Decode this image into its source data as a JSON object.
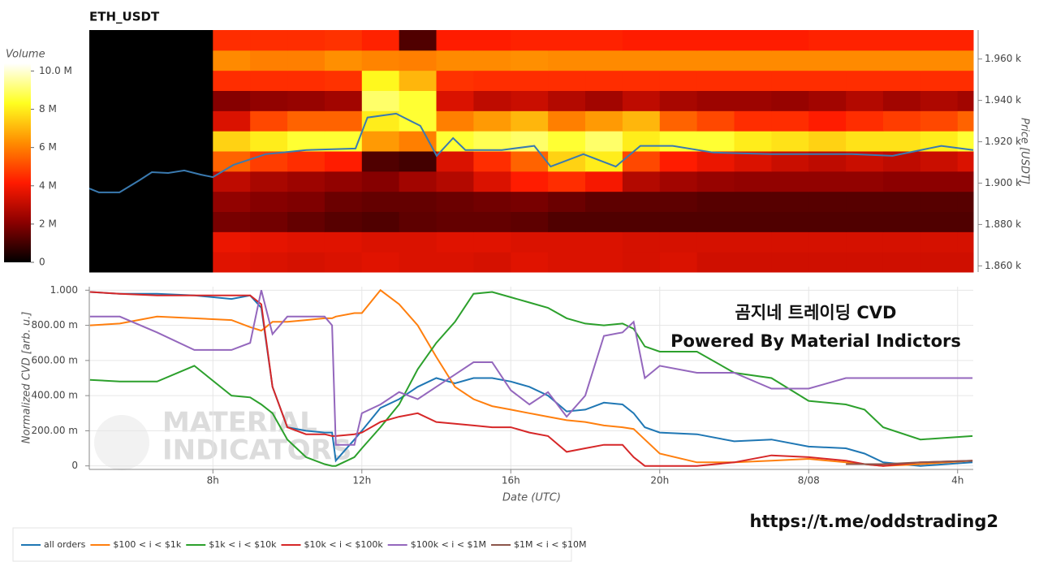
{
  "chart_data": [
    {
      "type": "heatmap",
      "title": "ETH_USDT",
      "y_label": "Price [USDT]",
      "colorbar_title": "Volume",
      "colorscale": [
        "#000000",
        "#8b0000",
        "#ff1a00",
        "#ff8c00",
        "#ffff20",
        "#ffffff"
      ],
      "zlim": [
        0,
        10.4
      ],
      "zticks": [
        0,
        {
          "value": 2,
          "label": "2 M"
        },
        {
          "value": 4,
          "label": "4 M"
        },
        {
          "value": 6,
          "label": "6 M"
        },
        {
          "value": 8,
          "label": "8 M"
        },
        {
          "value": 10,
          "label": "10.0 M"
        }
      ],
      "xlim": [
        4.68,
        28.42
      ],
      "ylim": [
        1857,
        1974
      ],
      "yticks": [
        {
          "value": 1860,
          "label": "1.860 k"
        },
        {
          "value": 1880,
          "label": "1.880 k"
        },
        {
          "value": 1900,
          "label": "1.900 k"
        },
        {
          "value": 1920,
          "label": "1.920 k"
        },
        {
          "value": 1940,
          "label": "1.940 k"
        },
        {
          "value": 1960,
          "label": "1.960 k"
        }
      ],
      "x_bins": [
        4.68,
        8,
        9,
        10,
        11,
        12,
        13,
        14,
        15,
        16,
        17,
        18,
        19,
        20,
        21,
        22,
        23,
        24,
        25,
        26,
        27,
        28,
        28.42
      ],
      "y_bins": [
        1857,
        1866.75,
        1876.5,
        1886.25,
        1896,
        1905.75,
        1915.5,
        1925.25,
        1935,
        1944.75,
        1954.5,
        1964.25,
        1974
      ],
      "z": [
        [
          0,
          3.6,
          3.5,
          3.4,
          3.5,
          3.6,
          3.5,
          3.5,
          3.4,
          3.6,
          3.5,
          3.5,
          3.4,
          3.5,
          3.3,
          3.3,
          3.3,
          3.3,
          3.3,
          3.3,
          3.3,
          3.3
        ],
        [
          0,
          3.8,
          3.7,
          3.6,
          3.6,
          3.5,
          3.5,
          3.6,
          3.6,
          3.5,
          3.5,
          3.5,
          3.4,
          3.4,
          3.4,
          3.4,
          3.4,
          3.4,
          3.4,
          3.4,
          3.4,
          3.4
        ],
        [
          0,
          1.8,
          1.7,
          1.5,
          1.3,
          1.2,
          1.4,
          1.5,
          1.5,
          1.4,
          1.2,
          1.2,
          1.2,
          1.2,
          1.2,
          1.2,
          1.2,
          1.2,
          1.2,
          1.2,
          1.2,
          1.2
        ],
        [
          0,
          2.2,
          2.0,
          1.9,
          1.6,
          1.5,
          1.5,
          1.6,
          1.7,
          1.8,
          1.6,
          1.4,
          1.4,
          1.4,
          1.3,
          1.3,
          1.3,
          1.3,
          1.3,
          1.3,
          1.3,
          1.3
        ],
        [
          0,
          3.0,
          2.6,
          2.4,
          2.2,
          2.0,
          2.5,
          2.8,
          3.5,
          4.2,
          4.5,
          4.0,
          2.8,
          2.5,
          2.3,
          2.2,
          2.2,
          2.2,
          2.2,
          2.1,
          2.1,
          2.1
        ],
        [
          0,
          5.5,
          4.8,
          4.5,
          4.2,
          1.2,
          1.0,
          3.5,
          4.5,
          5.5,
          7.5,
          8.0,
          5.0,
          4.2,
          3.8,
          3.5,
          3.2,
          3.0,
          3.2,
          3.0,
          3.2,
          3.5
        ],
        [
          0,
          7.5,
          8.0,
          8.5,
          8.5,
          6.5,
          6.0,
          8.5,
          8.8,
          9.0,
          8.5,
          9.0,
          8.0,
          8.5,
          8.5,
          8.0,
          7.8,
          7.5,
          7.8,
          7.8,
          8.0,
          8.5
        ],
        [
          0,
          3.5,
          5.0,
          5.5,
          5.5,
          8.0,
          8.5,
          6.0,
          6.5,
          7.0,
          6.0,
          6.5,
          7.0,
          5.5,
          5.0,
          4.5,
          4.5,
          4.2,
          4.5,
          4.8,
          5.0,
          5.5
        ],
        [
          0,
          2.0,
          2.2,
          2.3,
          2.5,
          9.0,
          8.5,
          3.5,
          3.0,
          3.2,
          2.8,
          2.5,
          3.0,
          2.6,
          2.4,
          2.4,
          2.3,
          2.5,
          2.8,
          2.5,
          2.7,
          2.5
        ],
        [
          0,
          4.5,
          4.5,
          4.5,
          4.6,
          8.2,
          7.0,
          4.6,
          4.5,
          4.5,
          4.5,
          4.5,
          4.5,
          4.5,
          4.5,
          4.5,
          4.5,
          4.5,
          4.5,
          4.5,
          4.5,
          4.5
        ],
        [
          0,
          6.2,
          6.0,
          6.0,
          6.3,
          6.1,
          6.0,
          6.2,
          6.2,
          6.3,
          6.2,
          6.2,
          6.2,
          6.2,
          6.2,
          6.2,
          6.2,
          6.2,
          6.2,
          6.2,
          6.2,
          6.2
        ],
        [
          0,
          4.5,
          4.5,
          4.5,
          4.6,
          4.3,
          1.2,
          4.2,
          4.2,
          4.3,
          4.3,
          4.3,
          4.2,
          4.2,
          4.2,
          4.2,
          4.2,
          4.3,
          4.3,
          4.3,
          4.3,
          4.3
        ]
      ],
      "price_line": {
        "color": "#3a7ab0",
        "x": [
          4.68,
          4.94,
          5.49,
          6.03,
          6.36,
          6.8,
          7.23,
          7.67,
          8,
          8.55,
          9.42,
          10.51,
          11.83,
          12.15,
          12.92,
          13.57,
          14.01,
          14.45,
          14.78,
          15.76,
          16.63,
          17.07,
          17.95,
          18.82,
          19.48,
          20.35,
          21.44,
          22.97,
          25.16,
          26.25,
          27.56,
          28.42
        ],
        "values": [
          1897.4,
          1895.5,
          1895.5,
          1901.4,
          1905.3,
          1904.9,
          1906.1,
          1904.1,
          1902.9,
          1908.8,
          1914,
          1916,
          1916.7,
          1931.7,
          1933.6,
          1927.7,
          1913.2,
          1921.8,
          1916,
          1916,
          1918,
          1908,
          1914,
          1908,
          1918,
          1918,
          1914.8,
          1914,
          1914,
          1913.2,
          1918,
          1916
        ]
      }
    },
    {
      "type": "line",
      "x_label": "Date (UTC)",
      "y_label": "Normalized CVD [arb. u.]",
      "grid": true,
      "xlim": [
        4.68,
        28.42
      ],
      "ylim": [
        -0.02,
        1.02
      ],
      "xticks": [
        {
          "value": 8,
          "label": "8h"
        },
        {
          "value": 12,
          "label": "12h"
        },
        {
          "value": 16,
          "label": "16h"
        },
        {
          "value": 20,
          "label": "20h"
        },
        {
          "value": 24,
          "label": "8/08"
        },
        {
          "value": 28,
          "label": "4h"
        }
      ],
      "yticks": [
        0,
        {
          "value": 0.2,
          "label": "200.00 m"
        },
        {
          "value": 0.4,
          "label": "400.00 m"
        },
        {
          "value": 0.6,
          "label": "600.00 m"
        },
        {
          "value": 0.8,
          "label": "800.00 m"
        },
        {
          "value": 1,
          "label": "1.000"
        }
      ],
      "annotations": [
        "곰지네 트레이딩 CVD",
        "Powered By Material Indictors"
      ],
      "watermark": [
        "MATERIAL",
        "INDICATORS"
      ],
      "x": [
        4.7,
        5.5,
        6.5,
        7.5,
        8.5,
        9.0,
        9.3,
        9.6,
        10.0,
        10.5,
        11.0,
        11.2,
        11.3,
        11.8,
        12.0,
        12.5,
        13.0,
        13.5,
        14.0,
        14.5,
        15.0,
        15.5,
        16.0,
        16.5,
        17.0,
        17.5,
        18.0,
        18.5,
        19.0,
        19.3,
        19.6,
        20.0,
        21.0,
        22.0,
        23.0,
        24.0,
        25.0,
        25.5,
        26.0,
        27.0,
        28.4
      ],
      "series": [
        {
          "name": "all orders",
          "color": "#1f77b4",
          "values": [
            0.99,
            0.98,
            0.98,
            0.97,
            0.95,
            0.97,
            0.9,
            0.45,
            0.22,
            0.2,
            0.19,
            0.19,
            0.03,
            0.15,
            0.2,
            0.33,
            0.38,
            0.45,
            0.5,
            0.47,
            0.5,
            0.5,
            0.48,
            0.45,
            0.4,
            0.31,
            0.32,
            0.36,
            0.35,
            0.3,
            0.22,
            0.19,
            0.18,
            0.14,
            0.15,
            0.11,
            0.1,
            0.07,
            0.02,
            0.0,
            0.02
          ]
        },
        {
          "name": "$100 < i < $1k",
          "color": "#ff7f0e",
          "values": [
            0.8,
            0.81,
            0.85,
            0.84,
            0.83,
            0.79,
            0.77,
            0.82,
            0.82,
            0.83,
            0.84,
            0.84,
            0.85,
            0.87,
            0.87,
            1.0,
            0.92,
            0.8,
            0.62,
            0.45,
            0.38,
            0.34,
            0.32,
            0.3,
            0.28,
            0.26,
            0.25,
            0.23,
            0.22,
            0.21,
            0.15,
            0.07,
            0.02,
            0.02,
            0.03,
            0.04,
            0.02,
            0.01,
            0.0,
            0.01,
            0.03
          ]
        },
        {
          "name": "$1k < i < $10k",
          "color": "#2ca02c",
          "values": [
            0.49,
            0.48,
            0.48,
            0.57,
            0.4,
            0.39,
            0.35,
            0.3,
            0.15,
            0.05,
            0.01,
            0.0,
            0.0,
            0.05,
            0.1,
            0.22,
            0.35,
            0.55,
            0.7,
            0.82,
            0.98,
            0.99,
            0.96,
            0.93,
            0.9,
            0.84,
            0.81,
            0.8,
            0.81,
            0.78,
            0.68,
            0.65,
            0.65,
            0.53,
            0.5,
            0.37,
            0.35,
            0.32,
            0.22,
            0.15,
            0.17
          ]
        },
        {
          "name": "$10k < i < $100k",
          "color": "#d62728",
          "values": [
            0.99,
            0.98,
            0.97,
            0.97,
            0.97,
            0.97,
            0.92,
            0.45,
            0.22,
            0.18,
            0.18,
            0.17,
            0.17,
            0.18,
            0.19,
            0.25,
            0.28,
            0.3,
            0.25,
            0.24,
            0.23,
            0.22,
            0.22,
            0.19,
            0.17,
            0.08,
            0.1,
            0.12,
            0.12,
            0.05,
            0.0,
            0.0,
            0.0,
            0.02,
            0.06,
            0.05,
            0.03,
            0.01,
            0.0,
            0.02,
            0.03
          ]
        },
        {
          "name": "$100k < i < $1M",
          "color": "#9467bd",
          "values": [
            0.85,
            0.85,
            0.76,
            0.66,
            0.66,
            0.7,
            1.0,
            0.75,
            0.85,
            0.85,
            0.85,
            0.8,
            0.12,
            0.12,
            0.3,
            0.35,
            0.42,
            0.38,
            0.45,
            0.52,
            0.59,
            0.59,
            0.43,
            0.35,
            0.42,
            0.28,
            0.4,
            0.74,
            0.76,
            0.82,
            0.5,
            0.57,
            0.53,
            0.53,
            0.44,
            0.44,
            0.5,
            0.5,
            0.5,
            0.5,
            0.5
          ]
        },
        {
          "name": "$1M < i < $10M",
          "color": "#8c564b",
          "values": [
            null,
            null,
            null,
            null,
            null,
            null,
            null,
            null,
            null,
            null,
            null,
            null,
            null,
            null,
            null,
            null,
            null,
            null,
            null,
            null,
            null,
            null,
            null,
            null,
            null,
            null,
            null,
            null,
            null,
            null,
            null,
            null,
            null,
            null,
            null,
            null,
            0.01,
            0.01,
            0.01,
            0.02,
            0.03
          ]
        }
      ]
    }
  ],
  "footer_link": "https://t.me/oddstrading2"
}
